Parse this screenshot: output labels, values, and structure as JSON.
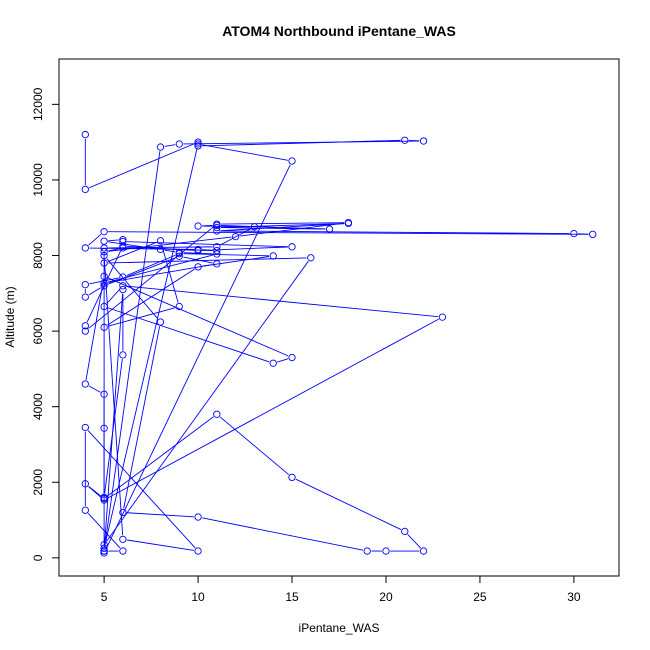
{
  "chart_data": {
    "type": "line",
    "title": "ATOM4 Northbound iPentane_WAS",
    "xlabel": "iPentane_WAS",
    "ylabel": "Altitude (m)",
    "xlim": [
      2.6,
      32.4
    ],
    "ylim": [
      -480,
      13200
    ],
    "xticks": [
      5,
      10,
      15,
      20,
      25,
      30
    ],
    "yticks": [
      0,
      2000,
      4000,
      6000,
      8000,
      10000,
      12000
    ],
    "grid": false,
    "legend": "none",
    "markers": "open-circle",
    "series_color": "#0000ff",
    "series": [
      {
        "points": [
          [
            4,
            11200
          ],
          [
            4,
            9750
          ],
          [
            10,
            11000
          ],
          [
            10,
            10900
          ],
          [
            21,
            11050
          ],
          [
            22,
            11030
          ],
          [
            9,
            10950
          ],
          [
            8,
            10870
          ],
          [
            5,
            180
          ],
          [
            5,
            250
          ],
          [
            10,
            10950
          ],
          [
            15,
            10500
          ],
          [
            5,
            130
          ],
          [
            5,
            8200
          ],
          [
            11,
            8230
          ],
          [
            13,
            8760
          ],
          [
            10,
            8780
          ],
          [
            11,
            8800
          ],
          [
            17,
            8700
          ],
          [
            11,
            8740
          ],
          [
            18,
            8850
          ],
          [
            11,
            8650
          ],
          [
            30,
            8580
          ],
          [
            31,
            8560
          ],
          [
            5,
            8630
          ],
          [
            4,
            8200
          ],
          [
            10,
            8160
          ],
          [
            11,
            8130
          ],
          [
            6,
            8200
          ],
          [
            5,
            8100
          ],
          [
            12,
            8500
          ],
          [
            18,
            8870
          ],
          [
            11,
            8830
          ],
          [
            4,
            6000
          ],
          [
            4,
            6140
          ],
          [
            6,
            8250
          ],
          [
            10,
            8130
          ],
          [
            15,
            8230
          ],
          [
            6,
            8370
          ],
          [
            6,
            8420
          ],
          [
            5,
            8380
          ],
          [
            8,
            8160
          ],
          [
            9,
            8080
          ],
          [
            11,
            8040
          ],
          [
            5,
            7270
          ],
          [
            11,
            7780
          ],
          [
            9,
            7980
          ],
          [
            5,
            7200
          ],
          [
            4,
            6900
          ],
          [
            4,
            7230
          ],
          [
            6,
            7430
          ],
          [
            9,
            8050
          ],
          [
            14,
            7990
          ],
          [
            10,
            7700
          ],
          [
            5,
            6100
          ],
          [
            9,
            6650
          ],
          [
            8,
            8390
          ],
          [
            5,
            7800
          ],
          [
            16,
            7940
          ],
          [
            5,
            350
          ],
          [
            5,
            180
          ],
          [
            6,
            7100
          ],
          [
            6,
            5370
          ],
          [
            5,
            1600
          ],
          [
            5,
            3430
          ],
          [
            5,
            4330
          ],
          [
            4,
            4600
          ],
          [
            5,
            7450
          ],
          [
            15,
            5300
          ],
          [
            14,
            5150
          ],
          [
            5,
            6650
          ],
          [
            6,
            7200
          ],
          [
            23,
            6370
          ],
          [
            5,
            1530
          ],
          [
            4,
            1960
          ],
          [
            5,
            1570
          ],
          [
            11,
            3800
          ],
          [
            15,
            2130
          ],
          [
            21,
            700
          ],
          [
            22,
            180
          ],
          [
            20,
            180
          ],
          [
            19,
            180
          ],
          [
            10,
            1080
          ],
          [
            6,
            1200
          ],
          [
            8,
            6240
          ],
          [
            5,
            8000
          ],
          [
            6,
            490
          ],
          [
            10,
            180
          ],
          [
            4,
            3450
          ],
          [
            4,
            1260
          ],
          [
            6,
            180
          ],
          [
            5,
            180
          ]
        ]
      }
    ]
  }
}
